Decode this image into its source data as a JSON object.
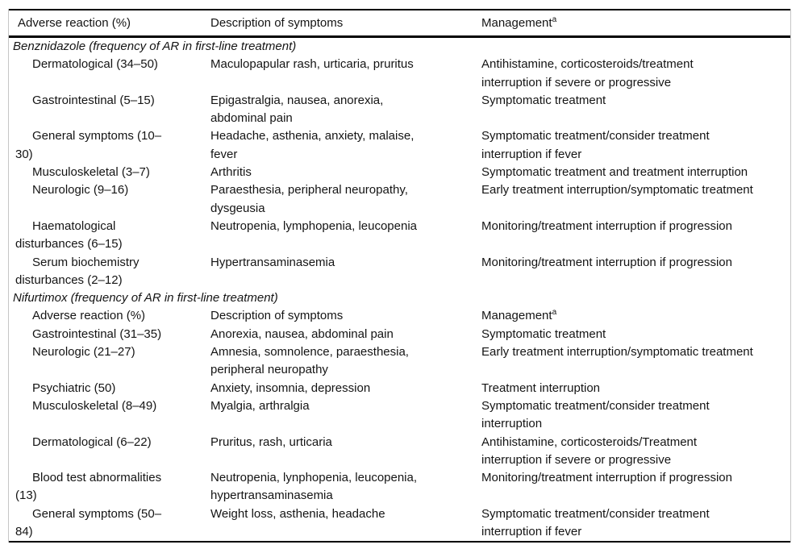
{
  "table": {
    "colors": {
      "rule": "#000000",
      "frame_line": "#c6c6c6",
      "text": "#141414",
      "background": "#ffffff"
    },
    "header": {
      "col1": "Adverse reaction (%)",
      "col2": "Description of symptoms",
      "col3": "Management",
      "col3_sup": "a"
    },
    "sections": [
      {
        "title": "Benznidazole (frequency of AR in first-line treatment)",
        "rows": [
          {
            "reaction": "Dermatological (34–50)",
            "symptoms": "Maculopapular rash, urticaria, pruritus",
            "management": "Antihistamine, corticosteroids/treatment\ninterruption if severe or progressive"
          },
          {
            "reaction": "Gastrointestinal (5–15)",
            "symptoms": "Epigastralgia, nausea, anorexia,\nabdominal pain",
            "management": "Symptomatic treatment"
          },
          {
            "reaction": "General symptoms (10–\n30)",
            "symptoms": "Headache, asthenia, anxiety, malaise,\nfever",
            "management": "Symptomatic treatment/consider treatment\ninterruption if fever"
          },
          {
            "reaction": "Musculoskeletal (3–7)",
            "symptoms": "Arthritis",
            "management": "Symptomatic treatment and treatment interruption"
          },
          {
            "reaction": "Neurologic (9–16)",
            "symptoms": "Paraesthesia, peripheral neuropathy,\ndysgeusia",
            "management": "Early treatment interruption/symptomatic treatment"
          },
          {
            "reaction": "Haematological\ndisturbances (6–15)",
            "symptoms": "Neutropenia, lymphopenia, leucopenia",
            "management": "Monitoring/treatment interruption if progression"
          },
          {
            "reaction": "Serum biochemistry\ndisturbances (2–12)",
            "symptoms": "Hypertransaminasemia",
            "management": "Monitoring/treatment interruption if progression"
          }
        ]
      },
      {
        "title": "Nifurtimox (frequency of AR in first-line treatment)",
        "subheader": {
          "col1": "Adverse reaction (%)",
          "col2": "Description of symptoms",
          "col3": "Management",
          "col3_sup": "a"
        },
        "rows": [
          {
            "reaction": "Gastrointestinal (31–35)",
            "symptoms": "Anorexia, nausea, abdominal pain",
            "management": "Symptomatic treatment"
          },
          {
            "reaction": "Neurologic (21–27)",
            "symptoms": "Amnesia, somnolence, paraesthesia,\nperipheral neuropathy",
            "management": "Early treatment interruption/symptomatic treatment"
          },
          {
            "reaction": "Psychiatric (50)",
            "symptoms": "Anxiety, insomnia, depression",
            "management": "Treatment interruption"
          },
          {
            "reaction": "Musculoskeletal (8–49)",
            "symptoms": "Myalgia, arthralgia",
            "management": "Symptomatic treatment/consider treatment\ninterruption"
          },
          {
            "reaction": "Dermatological (6–22)",
            "symptoms": "Pruritus, rash, urticaria",
            "management": "Antihistamine, corticosteroids/Treatment\ninterruption if severe or progressive"
          },
          {
            "reaction": "Blood test abnormalities\n(13)",
            "symptoms": "Neutropenia, lynphopenia, leucopenia,\nhypertransaminasemia",
            "management": "Monitoring/treatment interruption if progression"
          },
          {
            "reaction": "General symptoms (50–\n84)",
            "symptoms": "Weight loss, asthenia, headache",
            "management": "Symptomatic treatment/consider treatment\ninterruption if fever"
          }
        ]
      }
    ]
  }
}
